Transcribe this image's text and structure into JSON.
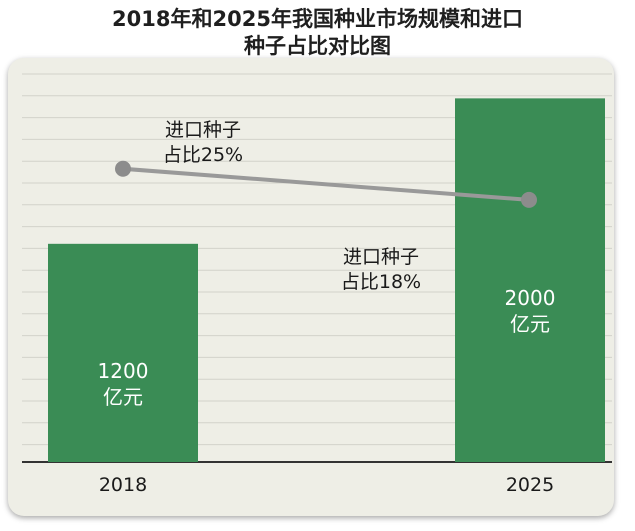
{
  "title_lines": [
    "2018年和2025年我国种业市场规模和进口",
    "种子占比对比图"
  ],
  "chart_data": {
    "type": "bar",
    "title": "2018年和2025年我国种业市场规模和进口种子占比对比图",
    "categories": [
      "2018",
      "2025"
    ],
    "series": [
      {
        "values": [
          1200,
          2000
        ],
        "unit": "亿元",
        "labels": [
          "1200\n亿元",
          "2000\n亿元"
        ]
      },
      {
        "type": "line",
        "values": [
          25,
          18
        ],
        "labels": [
          "进口种子\n占比25%",
          "进口种子\n占比18%"
        ]
      }
    ],
    "ylim": [
      0,
      2200
    ],
    "grid": true,
    "colors": {
      "bar": "#3a8c55",
      "line": "#999999",
      "point": "#8c8c8c",
      "panel": "#eeeee6",
      "grid": "#d2d2ca"
    }
  }
}
